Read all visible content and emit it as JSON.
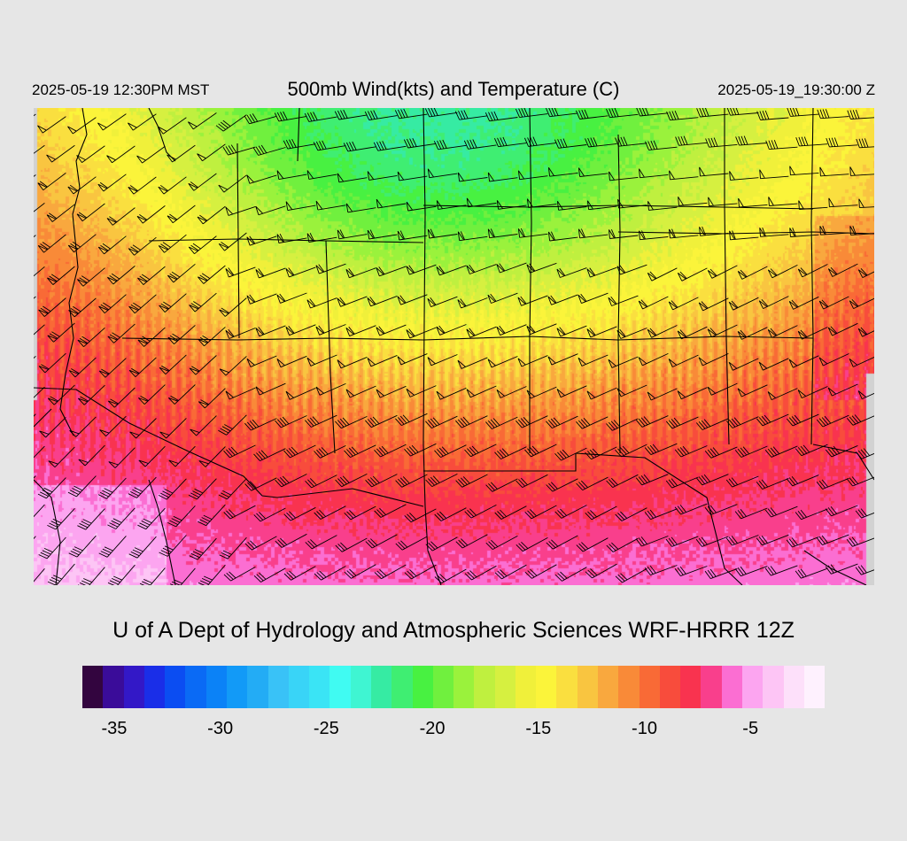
{
  "header": {
    "local_time": "2025-05-19 12:30PM MST",
    "title": "500mb Wind(kts) and Temperature (C)",
    "utc_time": "2025-05-19_19:30:00 Z"
  },
  "footer": {
    "credit": "U of A Dept of Hydrology and Atmospheric Sciences WRF-HRRR 12Z"
  },
  "colorbar": {
    "colors": [
      "#33053f",
      "#3a0c99",
      "#3318c7",
      "#1a2ee8",
      "#0b4df2",
      "#0a6af5",
      "#0b82f7",
      "#129af7",
      "#23acf5",
      "#39c2f7",
      "#39d4f7",
      "#3ae4f5",
      "#40fbf2",
      "#3ff5d2",
      "#36eba3",
      "#3fee72",
      "#48f141",
      "#70f03e",
      "#9af23c",
      "#bff03f",
      "#d6f040",
      "#f0f03a",
      "#fbf43a",
      "#fadf3f",
      "#f9c540",
      "#f9a83e",
      "#f98a38",
      "#f96a36",
      "#f84c3c",
      "#f9334f",
      "#f93f8c",
      "#fb6ed2",
      "#fca5f0",
      "#fdc5f5",
      "#fde0fa",
      "#fef1fe"
    ],
    "ticks": [
      "-35",
      "-30",
      "-25",
      "-20",
      "-15",
      "-10",
      "-5"
    ],
    "tick_values": [
      -35,
      -30,
      -25,
      -20,
      -15,
      -10,
      -5
    ],
    "min": -36.5,
    "max": -1.5
  },
  "map": {
    "field": "500mb temperature (C) with wind barbs (kts)",
    "notes": "temperature shading roughly -22 C (cyan/green) in north to -7 C (pink) in southwest"
  }
}
